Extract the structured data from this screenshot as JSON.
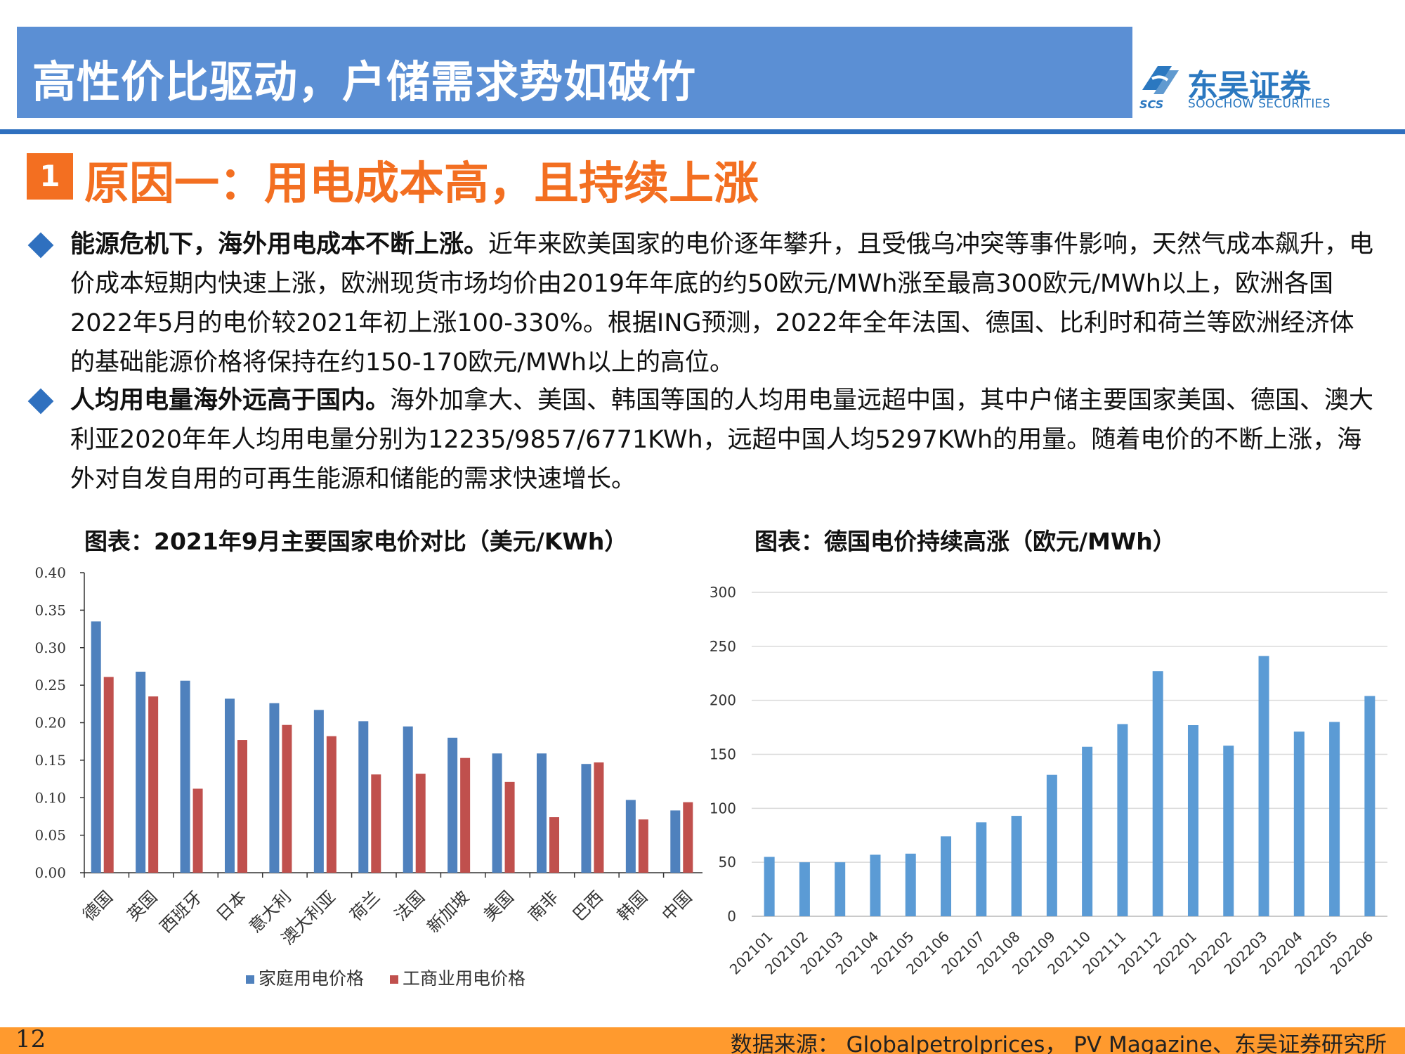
{
  "header": {
    "title": "高性价比驱动，户储需求势如破竹",
    "logo_cn": "东吴证券",
    "logo_en": "SOOCHOW SECURITIES",
    "logo_short": "SCS"
  },
  "section": {
    "number": "1",
    "title": "原因一：用电成本高，且持续上涨"
  },
  "bullets": [
    {
      "lead": "能源危机下，海外用电成本不断上涨。",
      "body": "近年来欧美国家的电价逐年攀升，且受俄乌冲突等事件影响，天然气成本飙升，电价成本短期内快速上涨，欧洲现货市场均价由2019年年底的约50欧元/MWh涨至最高300欧元/MWh以上，欧洲各国2022年5月的电价较2021年初上涨100-330%。根据ING预测，2022年全年法国、德国、比利时和荷兰等欧洲经济体的基础能源价格将保持在约150-170欧元/MWh以上的高位。"
    },
    {
      "lead": "人均用电量海外远高于国内。",
      "body": "海外加拿大、美国、韩国等国的人均用电量远超中国，其中户储主要国家美国、德国、澳大利亚2020年年人均用电量分别为12235/9857/6771KWh，远超中国人均5297KWh的用量。随着电价的不断上涨，海外对自发自用的可再生能源和储能的需求快速增长。"
    }
  ],
  "colors": {
    "title_bar": "#5b8fd4",
    "accent_orange": "#f36f21",
    "brand_blue": "#2f70bf",
    "household": "#4f81bd",
    "industrial": "#c0504d",
    "germany_bar": "#5b9bd5",
    "footer": "#ff9a2e"
  },
  "chart_data": [
    {
      "type": "bar",
      "title": "图表：2021年9月主要国家电价对比（美元/KWh）",
      "categories": [
        "德国",
        "英国",
        "西班牙",
        "日本",
        "意大利",
        "澳大利亚",
        "荷兰",
        "法国",
        "新加坡",
        "美国",
        "南非",
        "巴西",
        "韩国",
        "中国"
      ],
      "series": [
        {
          "name": "家庭用电价格",
          "color": "#4f81bd",
          "values": [
            0.335,
            0.268,
            0.256,
            0.232,
            0.226,
            0.217,
            0.202,
            0.195,
            0.18,
            0.159,
            0.159,
            0.145,
            0.097,
            0.083
          ]
        },
        {
          "name": "工商业用电价格",
          "color": "#c0504d",
          "values": [
            0.261,
            0.235,
            0.112,
            0.177,
            0.197,
            0.182,
            0.131,
            0.132,
            0.153,
            0.121,
            0.074,
            0.147,
            0.071,
            0.094
          ]
        }
      ],
      "yticks": [
        "0.00",
        "0.05",
        "0.10",
        "0.15",
        "0.20",
        "0.25",
        "0.30",
        "0.35",
        "0.40"
      ],
      "ylim": [
        0,
        0.4
      ],
      "legend": "bottom"
    },
    {
      "type": "bar",
      "title": "图表：德国电价持续高涨（欧元/MWh）",
      "categories": [
        "202101",
        "202102",
        "202103",
        "202104",
        "202105",
        "202106",
        "202107",
        "202108",
        "202109",
        "202110",
        "202111",
        "202112",
        "202201",
        "202202",
        "202203",
        "202204",
        "202205",
        "202206"
      ],
      "values": [
        55,
        50,
        50,
        57,
        58,
        74,
        87,
        93,
        131,
        157,
        178,
        227,
        177,
        158,
        241,
        171,
        180,
        204
      ],
      "yticks": [
        "0",
        "50",
        "100",
        "150",
        "200",
        "250",
        "300"
      ],
      "ylim": [
        0,
        300
      ],
      "grid": true
    }
  ],
  "footer": {
    "page": "12",
    "source": "数据来源： Globalpetrolprices， PV Magazine、东吴证券研究所"
  }
}
